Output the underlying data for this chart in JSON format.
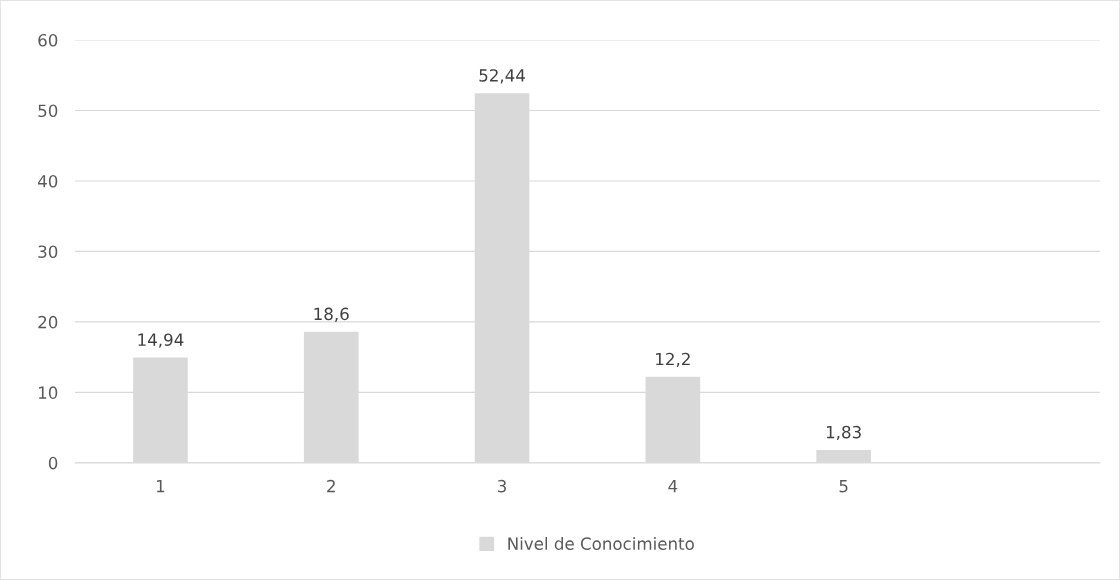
{
  "chart_data": {
    "type": "bar",
    "categories": [
      "1",
      "2",
      "3",
      "4",
      "5",
      null
    ],
    "series": [
      {
        "name": "Nivel de Conocimiento",
        "color": "#d9d9d9",
        "values": [
          14.94,
          18.6,
          52.44,
          12.2,
          1.83,
          null
        ],
        "value_labels": [
          "14,94",
          "18,6",
          "52,44",
          "12,2",
          "1,83",
          null
        ]
      }
    ],
    "ylim": [
      0,
      60
    ],
    "yticks": [
      0,
      10,
      20,
      30,
      40,
      50,
      60
    ],
    "grid": "y",
    "legend": "bottom"
  }
}
